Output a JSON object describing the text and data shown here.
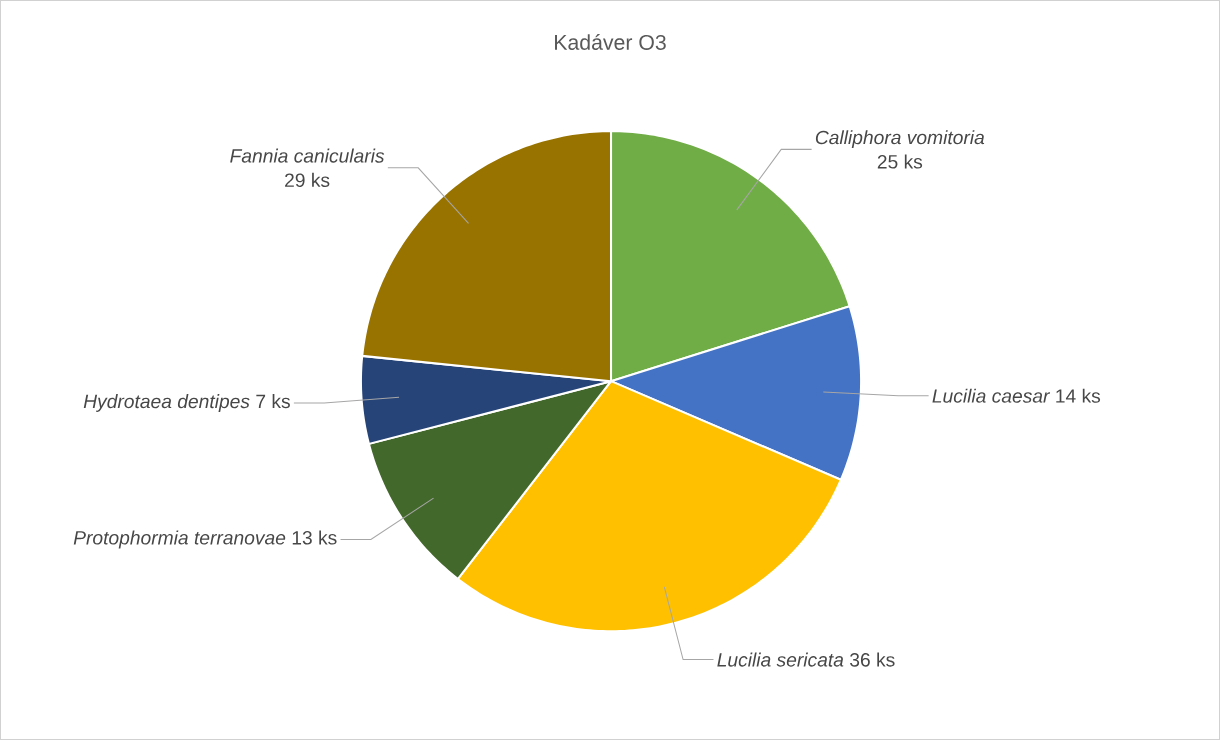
{
  "chart_data": {
    "type": "pie",
    "title": "Kadáver O3",
    "categories": [
      "Calliphora vomitoria",
      "Lucilia caesar",
      "Lucilia sericata",
      "Protophormia terranovae",
      "Hydrotaea dentipes",
      "Fannia canicularis"
    ],
    "values": [
      25,
      14,
      36,
      13,
      7,
      29
    ],
    "colors": [
      "#70ad47",
      "#4472c4",
      "#ffc000",
      "#43682b",
      "#264478",
      "#997300"
    ],
    "value_labels": [
      "25 ks",
      "14 ks",
      "36 ks",
      "13 ks",
      "7 ks",
      "29 ks"
    ]
  }
}
